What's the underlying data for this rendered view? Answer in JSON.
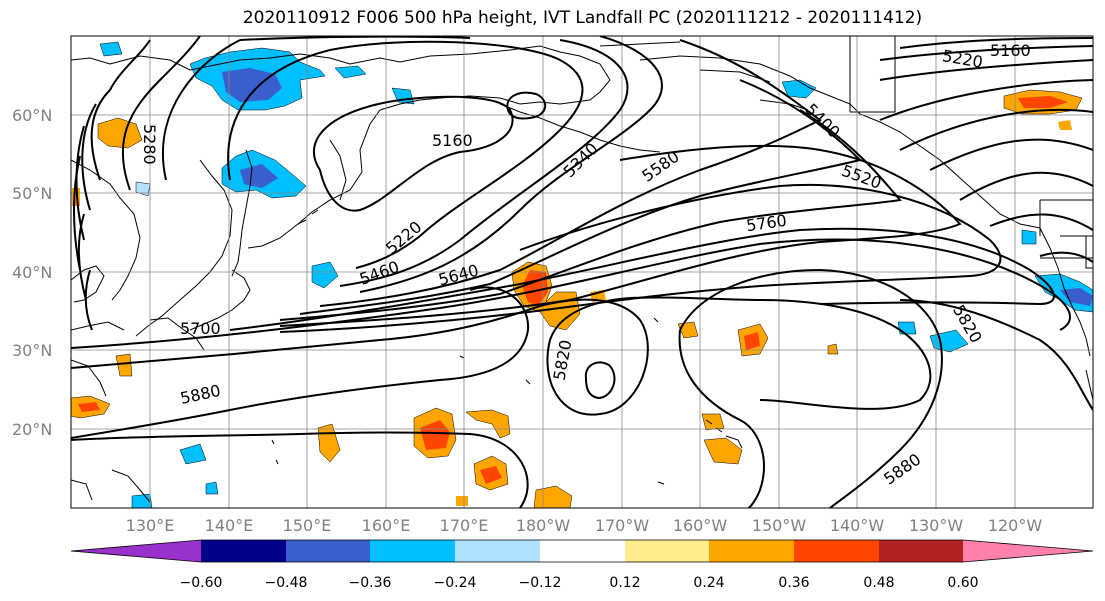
{
  "title": "2020110912 F006 500 hPa height, IVT Landfall PC (2020111212 - 2020111412)",
  "lat_labels": [
    "60°N",
    "50°N",
    "40°N",
    "30°N",
    "20°N"
  ],
  "lon_labels": [
    "130°E",
    "140°E",
    "150°E",
    "160°E",
    "170°E",
    "180°W",
    "170°W",
    "160°W",
    "150°W",
    "140°W",
    "130°W",
    "120°W"
  ],
  "contour_labels": {
    "c5160": "5160",
    "c5160b": "5160",
    "c5220": "5220",
    "c5220b": "5220",
    "c5280": "5280",
    "c5340": "5340",
    "c5400": "5400",
    "c5460": "5460",
    "c5520": "5520",
    "c5580": "5580",
    "c5640": "5640",
    "c5700": "5700",
    "c5760": "5760",
    "c5820": "5820",
    "c5820b": "5820",
    "c5880": "5880",
    "c5880b": "5880"
  },
  "colorbar": {
    "ticks": [
      "−0.60",
      "−0.48",
      "−0.36",
      "−0.24",
      "−0.12",
      "0.12",
      "0.24",
      "0.36",
      "0.48",
      "0.60"
    ],
    "colors": [
      "#9932cc",
      "#00008b",
      "#3a5fcd",
      "#00bfff",
      "#b0e2ff",
      "#ffffff",
      "#ffec8b",
      "#ffa500",
      "#ff4500",
      "#b22222",
      "#ff82ab"
    ]
  }
}
